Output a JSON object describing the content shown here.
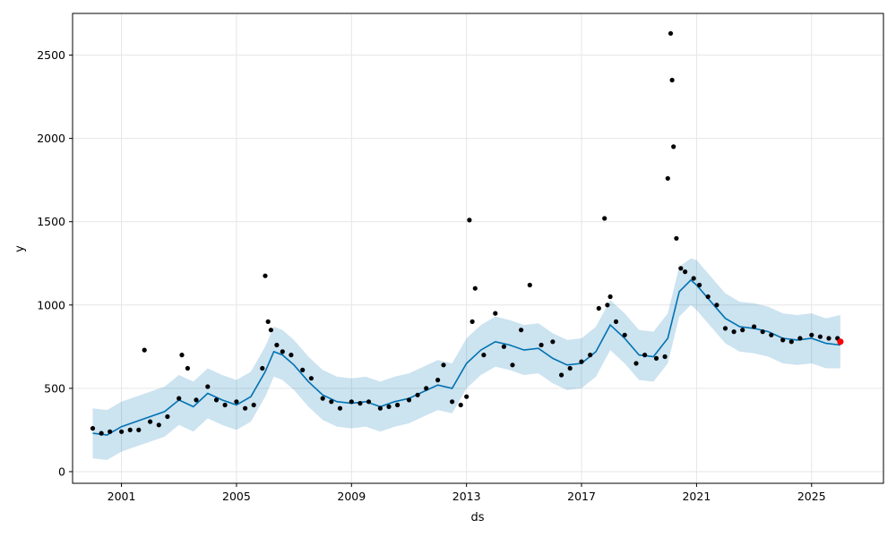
{
  "chart_data": {
    "type": "line",
    "title": "",
    "xlabel": "ds",
    "ylabel": "y",
    "xlim": [
      1999.3,
      2027.5
    ],
    "ylim": [
      -70,
      2750
    ],
    "grid": true,
    "x_ticks": [
      2001,
      2005,
      2009,
      2013,
      2017,
      2021,
      2025
    ],
    "x_tick_labels": [
      "2001",
      "2005",
      "2009",
      "2013",
      "2017",
      "2021",
      "2025"
    ],
    "y_ticks": [
      0,
      500,
      1000,
      1500,
      2000,
      2500
    ],
    "y_tick_labels": [
      "0",
      "500",
      "1000",
      "1500",
      "2000",
      "2500"
    ],
    "colors": {
      "observed": "#000000",
      "forecast_line": "#0072B2",
      "uncertainty_band": "#0072B2",
      "highlight": "#ff0000",
      "grid": "#e6e6e6"
    },
    "series": [
      {
        "role": "forecast",
        "x": [
          2000.0,
          2000.5,
          2001.0,
          2001.5,
          2002.0,
          2002.5,
          2003.0,
          2003.5,
          2004.0,
          2004.5,
          2005.0,
          2005.5,
          2006.0,
          2006.3,
          2006.6,
          2007.0,
          2007.5,
          2008.0,
          2008.5,
          2009.0,
          2009.5,
          2010.0,
          2010.5,
          2011.0,
          2011.5,
          2012.0,
          2012.5,
          2013.0,
          2013.5,
          2014.0,
          2014.5,
          2015.0,
          2015.5,
          2016.0,
          2016.5,
          2017.0,
          2017.5,
          2018.0,
          2018.5,
          2019.0,
          2019.5,
          2020.0,
          2020.4,
          2020.8,
          2021.0,
          2021.5,
          2022.0,
          2022.5,
          2023.0,
          2023.5,
          2024.0,
          2024.5,
          2025.0,
          2025.5,
          2026.0
        ],
        "y": [
          230,
          220,
          270,
          300,
          330,
          360,
          430,
          390,
          470,
          430,
          400,
          450,
          600,
          720,
          700,
          640,
          540,
          460,
          420,
          410,
          420,
          390,
          420,
          440,
          480,
          520,
          500,
          650,
          730,
          780,
          760,
          730,
          740,
          680,
          640,
          650,
          720,
          880,
          800,
          700,
          690,
          800,
          1080,
          1150,
          1120,
          1020,
          920,
          870,
          860,
          840,
          800,
          790,
          800,
          770,
          760
        ]
      },
      {
        "role": "uncertainty_upper",
        "x": [
          2000.0,
          2000.5,
          2001.0,
          2001.5,
          2002.0,
          2002.5,
          2003.0,
          2003.5,
          2004.0,
          2004.5,
          2005.0,
          2005.5,
          2006.0,
          2006.3,
          2006.6,
          2007.0,
          2007.5,
          2008.0,
          2008.5,
          2009.0,
          2009.5,
          2010.0,
          2010.5,
          2011.0,
          2011.5,
          2012.0,
          2012.5,
          2013.0,
          2013.5,
          2014.0,
          2014.5,
          2015.0,
          2015.5,
          2016.0,
          2016.5,
          2017.0,
          2017.5,
          2018.0,
          2018.5,
          2019.0,
          2019.5,
          2020.0,
          2020.4,
          2020.8,
          2021.0,
          2021.5,
          2022.0,
          2022.5,
          2023.0,
          2023.5,
          2024.0,
          2024.5,
          2025.0,
          2025.5,
          2026.0
        ],
        "y": [
          380,
          370,
          420,
          450,
          480,
          510,
          580,
          540,
          620,
          580,
          550,
          600,
          750,
          870,
          850,
          790,
          690,
          610,
          570,
          560,
          570,
          540,
          570,
          590,
          630,
          670,
          650,
          800,
          880,
          930,
          910,
          880,
          890,
          830,
          790,
          800,
          870,
          1030,
          950,
          850,
          840,
          950,
          1230,
          1280,
          1270,
          1170,
          1070,
          1020,
          1010,
          990,
          950,
          940,
          950,
          920,
          940
        ]
      },
      {
        "role": "uncertainty_lower",
        "x": [
          2000.0,
          2000.5,
          2001.0,
          2001.5,
          2002.0,
          2002.5,
          2003.0,
          2003.5,
          2004.0,
          2004.5,
          2005.0,
          2005.5,
          2006.0,
          2006.3,
          2006.6,
          2007.0,
          2007.5,
          2008.0,
          2008.5,
          2009.0,
          2009.5,
          2010.0,
          2010.5,
          2011.0,
          2011.5,
          2012.0,
          2012.5,
          2013.0,
          2013.5,
          2014.0,
          2014.5,
          2015.0,
          2015.5,
          2016.0,
          2016.5,
          2017.0,
          2017.5,
          2018.0,
          2018.5,
          2019.0,
          2019.5,
          2020.0,
          2020.4,
          2020.8,
          2021.0,
          2021.5,
          2022.0,
          2022.5,
          2023.0,
          2023.5,
          2024.0,
          2024.5,
          2025.0,
          2025.5,
          2026.0
        ],
        "y": [
          80,
          70,
          120,
          150,
          180,
          210,
          280,
          240,
          320,
          280,
          250,
          300,
          450,
          570,
          550,
          490,
          390,
          310,
          270,
          260,
          270,
          240,
          270,
          290,
          330,
          370,
          350,
          500,
          580,
          630,
          610,
          580,
          590,
          530,
          490,
          500,
          570,
          730,
          650,
          550,
          540,
          650,
          930,
          1000,
          970,
          870,
          770,
          720,
          710,
          690,
          650,
          640,
          650,
          620,
          620
        ]
      },
      {
        "role": "observed",
        "x": [
          2000.0,
          2000.3,
          2000.6,
          2001.0,
          2001.3,
          2001.6,
          2001.8,
          2002.0,
          2002.3,
          2002.6,
          2003.0,
          2003.1,
          2003.3,
          2003.6,
          2004.0,
          2004.3,
          2004.6,
          2005.0,
          2005.3,
          2005.6,
          2005.9,
          2006.0,
          2006.1,
          2006.2,
          2006.4,
          2006.6,
          2006.9,
          2007.3,
          2007.6,
          2008.0,
          2008.3,
          2008.6,
          2009.0,
          2009.3,
          2009.6,
          2010.0,
          2010.3,
          2010.6,
          2011.0,
          2011.3,
          2011.6,
          2012.0,
          2012.2,
          2012.5,
          2012.8,
          2013.0,
          2013.1,
          2013.2,
          2013.3,
          2013.6,
          2014.0,
          2014.3,
          2014.6,
          2014.9,
          2015.2,
          2015.6,
          2016.0,
          2016.3,
          2016.6,
          2017.0,
          2017.3,
          2017.6,
          2017.8,
          2017.9,
          2018.0,
          2018.2,
          2018.5,
          2018.9,
          2019.2,
          2019.6,
          2019.9,
          2020.0,
          2020.1,
          2020.15,
          2020.2,
          2020.3,
          2020.45,
          2020.6,
          2020.9,
          2021.1,
          2021.4,
          2021.7,
          2022.0,
          2022.3,
          2022.6,
          2023.0,
          2023.3,
          2023.6,
          2024.0,
          2024.3,
          2024.6,
          2025.0,
          2025.3,
          2025.6,
          2025.9
        ],
        "y": [
          260,
          230,
          240,
          240,
          250,
          250,
          730,
          300,
          280,
          330,
          440,
          700,
          620,
          430,
          510,
          430,
          400,
          420,
          380,
          400,
          620,
          1175,
          900,
          850,
          760,
          720,
          700,
          610,
          560,
          440,
          420,
          380,
          420,
          410,
          420,
          380,
          390,
          400,
          430,
          460,
          500,
          550,
          640,
          420,
          400,
          450,
          1510,
          900,
          1100,
          700,
          950,
          750,
          640,
          850,
          1120,
          760,
          780,
          580,
          620,
          660,
          700,
          980,
          1520,
          1000,
          1050,
          900,
          820,
          650,
          700,
          680,
          690,
          1760,
          2630,
          2350,
          1950,
          1400,
          1220,
          1200,
          1160,
          1120,
          1050,
          1000,
          860,
          840,
          850,
          870,
          840,
          820,
          790,
          780,
          800,
          820,
          810,
          800,
          800
        ]
      },
      {
        "role": "highlight",
        "x": [
          2026.0
        ],
        "y": [
          780
        ]
      }
    ]
  }
}
